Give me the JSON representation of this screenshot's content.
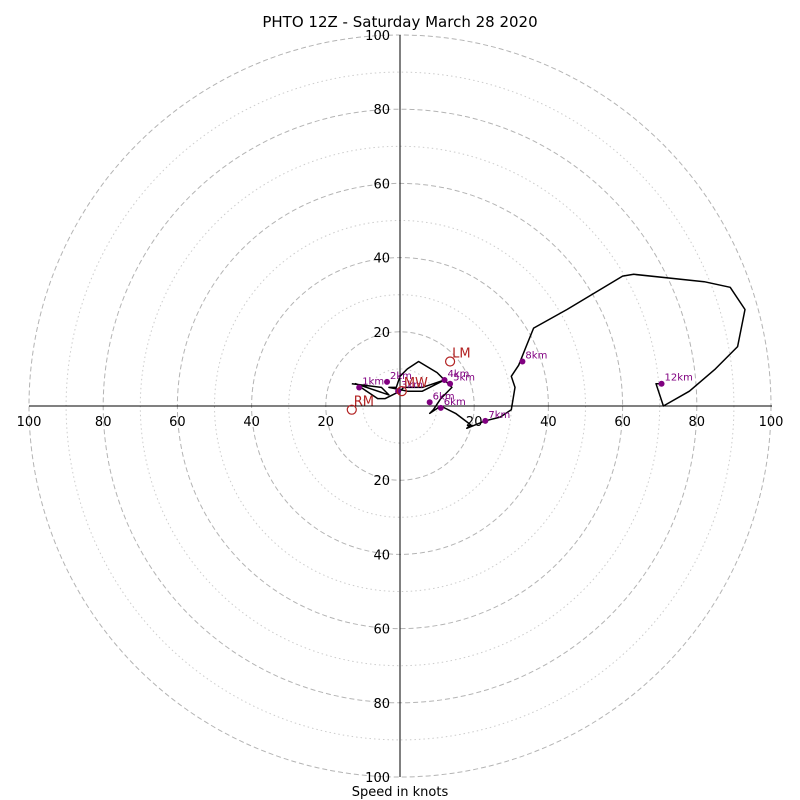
{
  "chart_data": {
    "type": "hodograph",
    "title": "PHTO 12Z - Saturday March 28 2020",
    "xlabel": "Speed in knots",
    "xlim": [
      -100,
      100
    ],
    "ylim": [
      -100,
      100
    ],
    "rings_labeled": [
      20,
      40,
      60,
      80,
      100
    ],
    "rings_minor": [
      10,
      30,
      50,
      70,
      90
    ],
    "x_tick_labels": [
      "100",
      "80",
      "60",
      "40",
      "20",
      "20",
      "40",
      "60",
      "80",
      "100"
    ],
    "y_tick_labels_upper": [
      "20",
      "40",
      "60",
      "80",
      "100"
    ],
    "y_tick_labels_lower": [
      "20",
      "40",
      "60",
      "80",
      "100"
    ],
    "grid": true,
    "hodograph_trace": [
      [
        -13,
        6
      ],
      [
        -5,
        5
      ],
      [
        -3,
        3
      ],
      [
        -12,
        6
      ],
      [
        -6,
        2
      ],
      [
        -4,
        2
      ],
      [
        0,
        4
      ],
      [
        1,
        5
      ],
      [
        6,
        5
      ],
      [
        12,
        7
      ],
      [
        10,
        9
      ],
      [
        5,
        12
      ],
      [
        2,
        10
      ],
      [
        0,
        8
      ],
      [
        -1,
        5
      ],
      [
        -3,
        5
      ],
      [
        2,
        4
      ],
      [
        6,
        4
      ],
      [
        12,
        7
      ],
      [
        14,
        5
      ],
      [
        11,
        2
      ],
      [
        9,
        -1
      ],
      [
        8,
        -2
      ],
      [
        11,
        0
      ],
      [
        15,
        -2
      ],
      [
        19,
        -5
      ],
      [
        18,
        -6
      ],
      [
        23,
        -4
      ],
      [
        27,
        -3
      ],
      [
        30,
        -1
      ],
      [
        31,
        5
      ],
      [
        30,
        8
      ],
      [
        32,
        11
      ],
      [
        34,
        16
      ],
      [
        36,
        21
      ],
      [
        45,
        26
      ],
      [
        60,
        35
      ],
      [
        63,
        35.5
      ],
      [
        82,
        33.5
      ],
      [
        89,
        32
      ],
      [
        93,
        26
      ],
      [
        91,
        16
      ],
      [
        85,
        10
      ],
      [
        78,
        4
      ],
      [
        71,
        0
      ],
      [
        69,
        6
      ],
      [
        70,
        6
      ]
    ],
    "height_markers": [
      {
        "label": "1km",
        "u": -11,
        "v": 5
      },
      {
        "label": "2km",
        "u": -3.5,
        "v": 6.5
      },
      {
        "label": "3km",
        "u": -0.5,
        "v": 4
      },
      {
        "label": "4km",
        "u": 12,
        "v": 7
      },
      {
        "label": "5km",
        "u": 13.5,
        "v": 6
      },
      {
        "label": "6km",
        "u": 8,
        "v": 1
      },
      {
        "label": "6km",
        "u": 11,
        "v": -0.5
      },
      {
        "label": "7km",
        "u": 23,
        "v": -4
      },
      {
        "label": "8km",
        "u": 33,
        "v": 12
      },
      {
        "label": "12km",
        "u": 70.5,
        "v": 6
      }
    ],
    "storm_motion": [
      {
        "label": "LM",
        "u": 13.5,
        "v": 12
      },
      {
        "label": "MW",
        "u": 0.5,
        "v": 4
      },
      {
        "label": "RM",
        "u": -13,
        "v": -1
      }
    ],
    "colors": {
      "trace": "#000000",
      "markers": "#800080",
      "motion": "#b22222",
      "ring_major": "#b4b4b4",
      "ring_minor": "#cccccc",
      "axis": "#000000"
    }
  }
}
